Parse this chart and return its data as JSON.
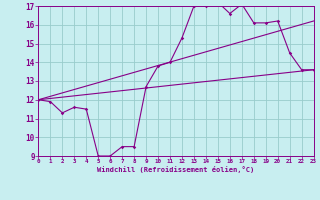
{
  "xlabel": "Windchill (Refroidissement éolien,°C)",
  "bg_color": "#c8eef0",
  "line_color": "#880088",
  "grid_color": "#99cccc",
  "xmin": 0,
  "xmax": 23,
  "ymin": 9,
  "ymax": 17,
  "hours": [
    0,
    1,
    2,
    3,
    4,
    5,
    6,
    7,
    8,
    9,
    10,
    11,
    12,
    13,
    14,
    15,
    16,
    17,
    18,
    19,
    20,
    21,
    22,
    23
  ],
  "windchill": [
    12.0,
    11.9,
    11.3,
    11.6,
    11.5,
    9.0,
    9.0,
    9.5,
    9.5,
    12.7,
    13.8,
    14.0,
    15.3,
    17.0,
    17.0,
    17.2,
    16.6,
    17.1,
    16.1,
    16.1,
    16.2,
    14.5,
    13.6,
    13.6
  ],
  "line1_y": [
    12.0,
    13.6
  ],
  "line2_y": [
    12.0,
    16.2
  ]
}
